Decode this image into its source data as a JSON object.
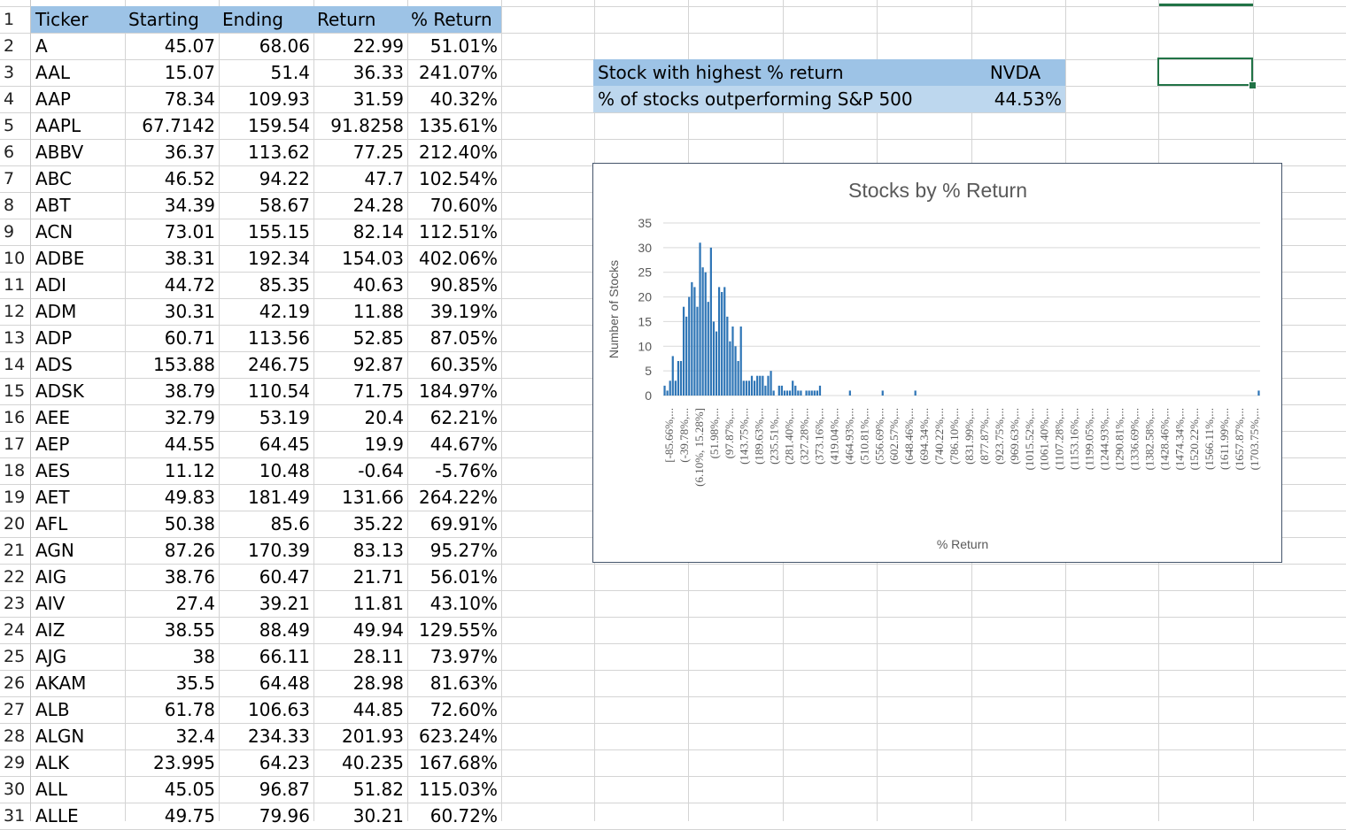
{
  "spreadsheet": {
    "headers": [
      "Ticker",
      "Starting",
      "Ending",
      "Return",
      "% Return"
    ],
    "rows": [
      [
        "A",
        "45.07",
        "68.06",
        "22.99",
        "51.01%"
      ],
      [
        "AAL",
        "15.07",
        "51.4",
        "36.33",
        "241.07%"
      ],
      [
        "AAP",
        "78.34",
        "109.93",
        "31.59",
        "40.32%"
      ],
      [
        "AAPL",
        "67.7142",
        "159.54",
        "91.8258",
        "135.61%"
      ],
      [
        "ABBV",
        "36.37",
        "113.62",
        "77.25",
        "212.40%"
      ],
      [
        "ABC",
        "46.52",
        "94.22",
        "47.7",
        "102.54%"
      ],
      [
        "ABT",
        "34.39",
        "58.67",
        "24.28",
        "70.60%"
      ],
      [
        "ACN",
        "73.01",
        "155.15",
        "82.14",
        "112.51%"
      ],
      [
        "ADBE",
        "38.31",
        "192.34",
        "154.03",
        "402.06%"
      ],
      [
        "ADI",
        "44.72",
        "85.35",
        "40.63",
        "90.85%"
      ],
      [
        "ADM",
        "30.31",
        "42.19",
        "11.88",
        "39.19%"
      ],
      [
        "ADP",
        "60.71",
        "113.56",
        "52.85",
        "87.05%"
      ],
      [
        "ADS",
        "153.88",
        "246.75",
        "92.87",
        "60.35%"
      ],
      [
        "ADSK",
        "38.79",
        "110.54",
        "71.75",
        "184.97%"
      ],
      [
        "AEE",
        "32.79",
        "53.19",
        "20.4",
        "62.21%"
      ],
      [
        "AEP",
        "44.55",
        "64.45",
        "19.9",
        "44.67%"
      ],
      [
        "AES",
        "11.12",
        "10.48",
        "-0.64",
        "-5.76%"
      ],
      [
        "AET",
        "49.83",
        "181.49",
        "131.66",
        "264.22%"
      ],
      [
        "AFL",
        "50.38",
        "85.6",
        "35.22",
        "69.91%"
      ],
      [
        "AGN",
        "87.26",
        "170.39",
        "83.13",
        "95.27%"
      ],
      [
        "AIG",
        "38.76",
        "60.47",
        "21.71",
        "56.01%"
      ],
      [
        "AIV",
        "27.4",
        "39.21",
        "11.81",
        "43.10%"
      ],
      [
        "AIZ",
        "38.55",
        "88.49",
        "49.94",
        "129.55%"
      ],
      [
        "AJG",
        "38",
        "66.11",
        "28.11",
        "73.97%"
      ],
      [
        "AKAM",
        "35.5",
        "64.48",
        "28.98",
        "81.63%"
      ],
      [
        "ALB",
        "61.78",
        "106.63",
        "44.85",
        "72.60%"
      ],
      [
        "ALGN",
        "32.4",
        "234.33",
        "201.93",
        "623.24%"
      ],
      [
        "ALK",
        "23.995",
        "64.23",
        "40.235",
        "167.68%"
      ],
      [
        "ALL",
        "45.05",
        "96.87",
        "51.82",
        "115.03%"
      ],
      [
        "ALLE",
        "49.75",
        "79.96",
        "30.21",
        "60.72%"
      ]
    ]
  },
  "summary": {
    "highest_label": "Stock with highest % return",
    "highest_value": "NVDA",
    "outperform_label": "% of stocks outperforming S&P 500",
    "outperform_value": "44.53%"
  },
  "chart_data": {
    "type": "bar",
    "title": "Stocks by % Return",
    "xlabel": "% Return",
    "ylabel": "Number of Stocks",
    "ylim": [
      0,
      35
    ],
    "yticks": [
      0,
      5,
      10,
      15,
      20,
      25,
      30,
      35
    ],
    "grid": true,
    "bar_color": "#2e75b6",
    "category_labels": [
      "[-85.66%,...",
      "(-39.78%,...",
      "(6.10%, 15.28%]",
      "(51.98%,...",
      "(97.87%,...",
      "(143.75%,...",
      "(189.63%,...",
      "(235.51%,...",
      "(281.40%,...",
      "(327.28%,...",
      "(373.16%,...",
      "(419.04%,...",
      "(464.93%,...",
      "(510.81%,...",
      "(556.69%,...",
      "(602.57%,...",
      "(648.46%,...",
      "(694.34%,...",
      "(740.22%,...",
      "(786.10%,...",
      "(831.99%,...",
      "(877.87%,...",
      "(923.75%,...",
      "(969.63%,...",
      "(1015.52%,...",
      "(1061.40%,...",
      "(1107.28%,...",
      "(1153.16%,...",
      "(1199.05%,...",
      "(1244.93%,...",
      "(1290.81%,...",
      "(1336.69%,...",
      "(1382.58%,...",
      "(1428.46%,...",
      "(1474.34%,...",
      "(1520.22%,...",
      "(1566.11%,...",
      "(1611.99%,...",
      "(1657.87%,...",
      "(1703.75%,..."
    ],
    "values": [
      2,
      1,
      3,
      8,
      3,
      7,
      7,
      18,
      16,
      20,
      23,
      22,
      18,
      31,
      26,
      25,
      19,
      30,
      15,
      13,
      22,
      21,
      22,
      16,
      11,
      14,
      10,
      7,
      14,
      3,
      3,
      3,
      4,
      3,
      4,
      4,
      4,
      2,
      4,
      5,
      1,
      0,
      2,
      2,
      1,
      1,
      1,
      3,
      2,
      1,
      1,
      0,
      1,
      1,
      1,
      1,
      1,
      2,
      0,
      0,
      0,
      0,
      0,
      0,
      0,
      0,
      0,
      0,
      1,
      0,
      0,
      0,
      0,
      0,
      0,
      0,
      0,
      0,
      0,
      0,
      1,
      0,
      0,
      0,
      0,
      0,
      0,
      0,
      0,
      0,
      0,
      0,
      1,
      0,
      0,
      0,
      0,
      0,
      0,
      0,
      0,
      0,
      0,
      0,
      0,
      0,
      0,
      0,
      0,
      0,
      0,
      0,
      0,
      0,
      0,
      0,
      0,
      0,
      0,
      0,
      0,
      0,
      0,
      0,
      0,
      0,
      0,
      0,
      0,
      0,
      0,
      0,
      0,
      0,
      0,
      0,
      0,
      0,
      0,
      0,
      0,
      0,
      0,
      0,
      0,
      0,
      0,
      0,
      0,
      0,
      0,
      0,
      0,
      0,
      0,
      0,
      0,
      0,
      0,
      0,
      0,
      0,
      0,
      0,
      0,
      0,
      0,
      0,
      0,
      0,
      0,
      0,
      0,
      0,
      0,
      0,
      0,
      0,
      0,
      0,
      0,
      0,
      0,
      0,
      0,
      0,
      0,
      0,
      0,
      0,
      0,
      0,
      0,
      0,
      0,
      0,
      0,
      0,
      0,
      0,
      0,
      0,
      0,
      0,
      0,
      0,
      0,
      0,
      0,
      0,
      0,
      0,
      0,
      0,
      0,
      0,
      0,
      0,
      1
    ]
  }
}
